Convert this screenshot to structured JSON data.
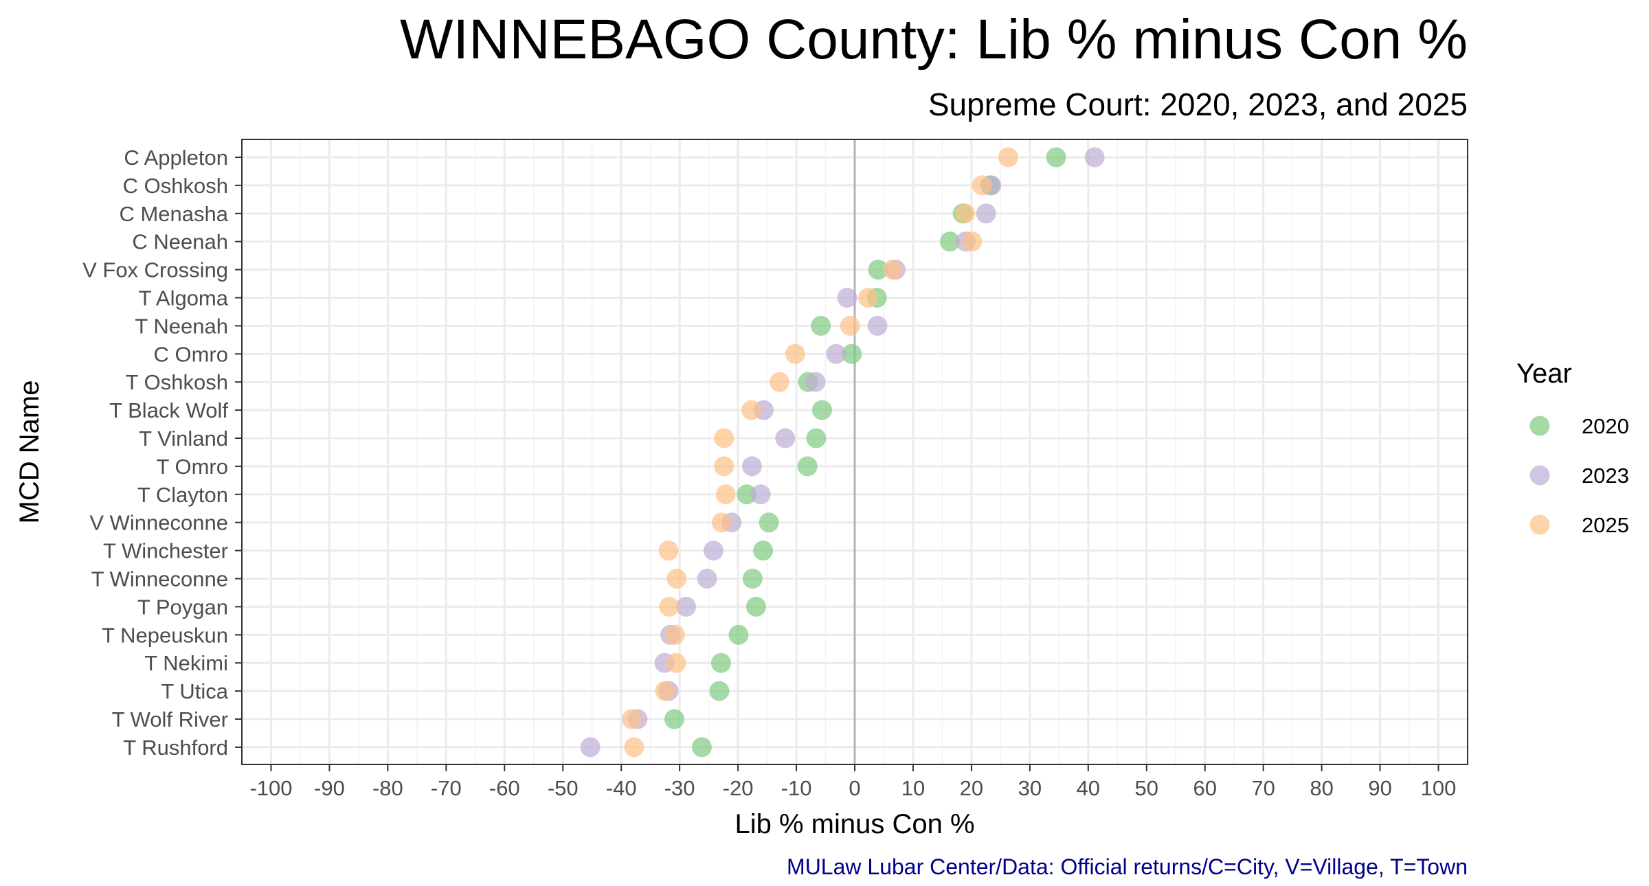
{
  "chart_data": {
    "type": "scatter",
    "title": "WINNEBAGO County: Lib % minus Con %",
    "subtitle": "Supreme Court: 2020, 2023, and 2025",
    "xlabel": "Lib % minus Con %",
    "ylabel": "MCD Name",
    "caption": "MULaw Lubar Center/Data: Official returns/C=City, V=Village, T=Town",
    "xlim": [
      -105,
      105
    ],
    "xticks": [
      -100,
      -90,
      -80,
      -70,
      -60,
      -50,
      -40,
      -30,
      -20,
      -10,
      0,
      10,
      20,
      30,
      40,
      50,
      60,
      70,
      80,
      90,
      100
    ],
    "xtick_labels": [
      "-100",
      "-90",
      "-80",
      "-70",
      "-60",
      "-50",
      "-40",
      "-30",
      "-20",
      "-10",
      "0",
      "10",
      "20",
      "30",
      "40",
      "50",
      "60",
      "70",
      "80",
      "90",
      "100"
    ],
    "grid": true,
    "reference_line_x": 0,
    "legend": {
      "title": "Year",
      "position": "right"
    },
    "categories": [
      "C Appleton",
      "C Oshkosh",
      "C Menasha",
      "C Neenah",
      "V Fox Crossing",
      "T Algoma",
      "T Neenah",
      "C Omro",
      "T Oshkosh",
      "T Black Wolf",
      "T Vinland",
      "T Omro",
      "T Clayton",
      "V Winneconne",
      "T Winchester",
      "T Winneconne",
      "T Poygan",
      "T Nepeuskun",
      "T Nekimi",
      "T Utica",
      "T Wolf River",
      "T Rushford"
    ],
    "series": [
      {
        "name": "2020",
        "color": "#7fc97f",
        "values": [
          34.5,
          23.2,
          18.5,
          16.3,
          4.0,
          3.8,
          -5.8,
          -0.5,
          -8.0,
          -5.6,
          -6.6,
          -8.1,
          -18.5,
          -14.7,
          -15.7,
          -17.5,
          -16.9,
          -19.9,
          -22.9,
          -23.2,
          -30.9,
          -26.2
        ]
      },
      {
        "name": "2023",
        "color": "#beaed4",
        "values": [
          41.1,
          23.4,
          22.5,
          19.0,
          7.0,
          -1.3,
          3.9,
          -3.2,
          -6.7,
          -15.6,
          -11.9,
          -17.6,
          -16.1,
          -21.1,
          -24.2,
          -25.3,
          -28.9,
          -31.6,
          -32.6,
          -31.9,
          -37.2,
          -45.3
        ]
      },
      {
        "name": "2025",
        "color": "#fdc086",
        "values": [
          26.3,
          21.8,
          18.9,
          20.1,
          6.5,
          2.3,
          -0.8,
          -10.2,
          -12.9,
          -17.7,
          -22.4,
          -22.4,
          -22.1,
          -22.8,
          -31.9,
          -30.5,
          -31.8,
          -30.8,
          -30.6,
          -32.5,
          -38.2,
          -37.8
        ]
      }
    ]
  }
}
